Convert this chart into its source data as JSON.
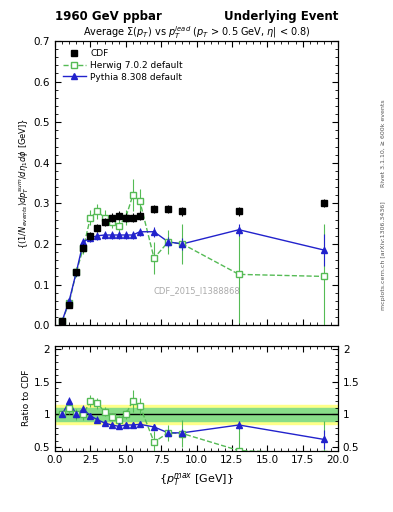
{
  "title_left": "1960 GeV ppbar",
  "title_right": "Underlying Event",
  "plot_title": "Average $\\Sigma(p_T)$ vs $p_T^{lead}$ ($p_T$ > 0.5 GeV, $\\eta$| < 0.8)",
  "watermark": "CDF_2015_I1388868",
  "right_label_top": "Rivet 3.1.10, ≥ 600k events",
  "right_label_bottom": "mcplots.cern.ch [arXiv:1306.3436]",
  "xlabel": "$\\{p_T^{max}$ [GeV]$\\}$",
  "ylabel": "$\\{(1/N_{events}) dp_T^{sum}/d\\eta_1 d\\phi$ [GeV]$\\}$",
  "ylabel_ratio": "Ratio to CDF",
  "ylim_main": [
    0.0,
    0.7
  ],
  "ylim_ratio": [
    0.45,
    2.05
  ],
  "xlim": [
    0,
    20
  ],
  "cdf_x": [
    0.5,
    1.0,
    1.5,
    2.0,
    2.5,
    3.0,
    3.5,
    4.0,
    4.5,
    5.0,
    5.5,
    6.0,
    7.0,
    8.0,
    9.0,
    13.0,
    19.0
  ],
  "cdf_y": [
    0.01,
    0.05,
    0.13,
    0.19,
    0.22,
    0.24,
    0.255,
    0.265,
    0.27,
    0.265,
    0.265,
    0.27,
    0.285,
    0.285,
    0.28,
    0.28,
    0.3
  ],
  "cdf_yerr": [
    0.003,
    0.005,
    0.008,
    0.01,
    0.01,
    0.01,
    0.01,
    0.01,
    0.01,
    0.01,
    0.01,
    0.01,
    0.01,
    0.01,
    0.01,
    0.01,
    0.01
  ],
  "herwig_x": [
    0.5,
    1.0,
    1.5,
    2.0,
    2.5,
    3.0,
    3.5,
    4.0,
    4.5,
    5.0,
    5.5,
    6.0,
    7.0,
    8.0,
    9.0,
    13.0,
    19.0
  ],
  "herwig_y": [
    0.01,
    0.055,
    0.13,
    0.19,
    0.265,
    0.28,
    0.265,
    0.255,
    0.245,
    0.265,
    0.32,
    0.305,
    0.165,
    0.205,
    0.2,
    0.125,
    0.12
  ],
  "herwig_yerr": [
    0.003,
    0.008,
    0.012,
    0.015,
    0.018,
    0.018,
    0.018,
    0.015,
    0.015,
    0.018,
    0.04,
    0.03,
    0.04,
    0.03,
    0.05,
    0.12,
    0.13
  ],
  "pythia_x": [
    0.5,
    1.0,
    1.5,
    2.0,
    2.5,
    3.0,
    3.5,
    4.0,
    4.5,
    5.0,
    5.5,
    6.0,
    7.0,
    8.0,
    9.0,
    13.0,
    19.0
  ],
  "pythia_y": [
    0.01,
    0.06,
    0.13,
    0.205,
    0.215,
    0.22,
    0.222,
    0.222,
    0.222,
    0.222,
    0.222,
    0.23,
    0.23,
    0.205,
    0.2,
    0.235,
    0.185
  ],
  "pythia_yerr": [
    0.003,
    0.006,
    0.008,
    0.01,
    0.01,
    0.01,
    0.01,
    0.01,
    0.01,
    0.01,
    0.01,
    0.01,
    0.012,
    0.012,
    0.015,
    0.015,
    0.04
  ],
  "cdf_color": "black",
  "herwig_color": "#55bb55",
  "pythia_color": "#2222cc",
  "band_yellow": [
    0.85,
    1.15
  ],
  "band_green": [
    0.9,
    1.1
  ],
  "herwig_ratio_y": [
    1.0,
    1.1,
    1.0,
    1.0,
    1.21,
    1.17,
    1.04,
    0.96,
    0.91,
    1.0,
    1.21,
    1.13,
    0.58,
    0.72,
    0.71,
    0.45,
    0.4
  ],
  "herwig_ratio_yerr": [
    0.04,
    0.09,
    0.08,
    0.08,
    0.09,
    0.08,
    0.07,
    0.06,
    0.06,
    0.07,
    0.17,
    0.12,
    0.17,
    0.12,
    0.2,
    0.45,
    0.5
  ],
  "pythia_ratio_y": [
    1.0,
    1.2,
    1.0,
    1.08,
    0.98,
    0.92,
    0.87,
    0.84,
    0.82,
    0.84,
    0.84,
    0.85,
    0.81,
    0.72,
    0.72,
    0.84,
    0.62
  ],
  "pythia_ratio_yerr": [
    0.04,
    0.07,
    0.06,
    0.06,
    0.05,
    0.05,
    0.05,
    0.04,
    0.04,
    0.04,
    0.04,
    0.04,
    0.05,
    0.05,
    0.06,
    0.06,
    0.15
  ]
}
